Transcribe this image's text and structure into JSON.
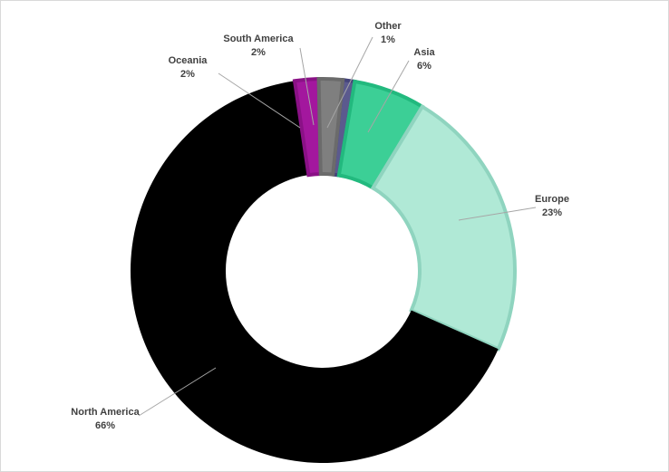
{
  "chart_data": {
    "type": "pie",
    "variant": "donut",
    "title": "",
    "legend": "none",
    "categories": [
      "Other",
      "Asia",
      "Europe",
      "North America",
      "Oceania",
      "South America"
    ],
    "values": [
      1,
      6,
      23,
      66,
      2,
      2
    ],
    "percent_labels": [
      "1%",
      "6%",
      "23%",
      "66%",
      "2%",
      "2%"
    ],
    "colors": [
      "#5b5a8e",
      "#3ccf96",
      "#b0e9d6",
      "#000000",
      "#a3179e",
      "#7f7f7f"
    ],
    "border_colors": [
      "#44437a",
      "#22b97e",
      "#8fd4bf",
      "#000000",
      "#8a1186",
      "#6b6b6b"
    ]
  }
}
